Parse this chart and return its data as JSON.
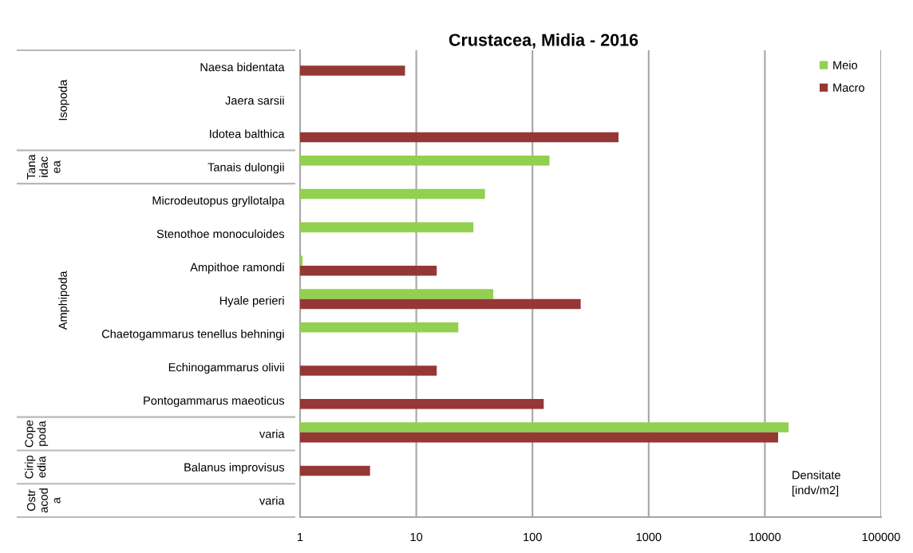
{
  "chart_data": {
    "type": "bar",
    "orientation": "horizontal",
    "title": "Crustacea, Midia - 2016",
    "xlabel": "Densitate\n[indv/m2]",
    "categories": [
      "Naesa bidentata",
      "Jaera sarsii",
      "Idotea balthica",
      "Tanais dulongii",
      "Microdeutopus gryllotalpa",
      "Stenothoe monoculoides",
      "Ampithoe ramondi",
      "Hyale perieri",
      "Chaetogammarus tenellus behningi",
      "Echinogammarus olivii",
      "Pontogammarus maeoticus",
      "varia",
      "Balanus improvisus",
      "varia"
    ],
    "y2_categories": [
      null,
      "Isopoda",
      null,
      "Tana\nidac\nea",
      null,
      null,
      null,
      "Amphipoda",
      null,
      null,
      null,
      "Cope\npoda",
      "Cirip\nedia",
      "Ostr\nacod\na"
    ],
    "series": [
      {
        "name": "Meio",
        "color": "#92d050",
        "values": [
          null,
          null,
          null,
          140,
          39,
          31,
          1.05,
          46,
          23,
          null,
          null,
          16000,
          null,
          null
        ]
      },
      {
        "name": "Macro",
        "color": "#953735",
        "values": [
          8,
          null,
          550,
          null,
          null,
          null,
          15,
          260,
          null,
          15,
          125,
          13000,
          4,
          null
        ]
      }
    ],
    "xlim": [
      1,
      100000
    ],
    "xticks": [
      1,
      10,
      100,
      1000,
      10000,
      100000
    ],
    "log": "x",
    "grid": "x",
    "legend": "top right"
  }
}
